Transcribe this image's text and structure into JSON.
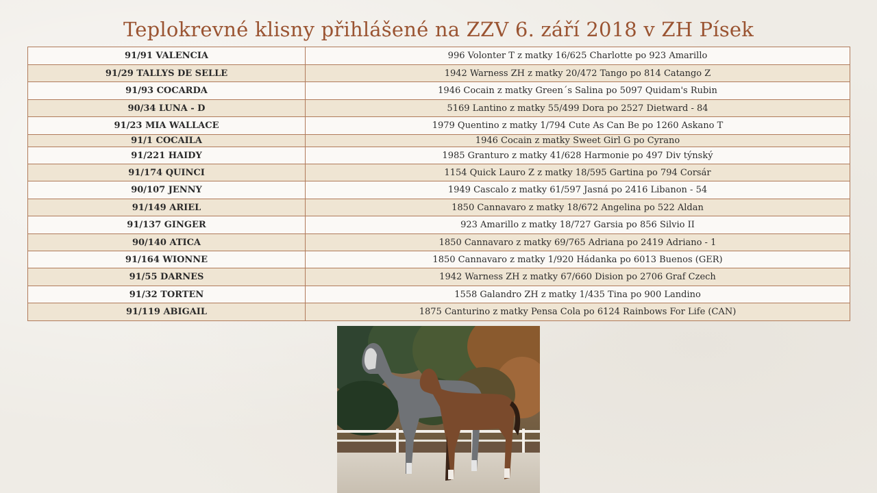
{
  "title": "Teplokrevné klisny přihlášené na ZZV 6. září 2018 v ZH Písek",
  "rows": [
    {
      "name": "91/91 VALENCIA",
      "pedigree": "996 Volonter T z matky 16/625 Charlotte po 923 Amarillo"
    },
    {
      "name": "91/29 TALLYS DE SELLE",
      "pedigree": "1942 Warness ZH z matky 20/472 Tango po 814 Catango Z"
    },
    {
      "name": "91/93 COCARDA",
      "pedigree": "1946 Cocain z matky Green´s Salina po 5097 Quidam's Rubin"
    },
    {
      "name": "90/34 LUNA - D",
      "pedigree": "5169 Lantino z matky 55/499 Dora po 2527 Dietward - 84"
    },
    {
      "name": "91/23 MIA WALLACE",
      "pedigree": "1979 Quentino z matky 1/794 Cute As Can Be po 1260 Askano T"
    },
    {
      "name": "91/1 COCAILA",
      "pedigree": "1946 Cocain z matky Sweet Girl G po Cyrano"
    },
    {
      "name": "91/221 HAIDY",
      "pedigree": "1985 Granturo z matky 41/628 Harmonie po 497 Div týnský"
    },
    {
      "name": "91/174 QUINCI",
      "pedigree": "1154 Quick Lauro Z z matky 18/595 Gartina po 794 Corsár"
    },
    {
      "name": "90/107 JENNY",
      "pedigree": "1949 Cascalo z matky 61/597 Jasná po 2416 Libanon - 54"
    },
    {
      "name": "91/149 ARIEL",
      "pedigree": "1850 Cannavaro z matky 18/672 Angelina po 522 Aldan"
    },
    {
      "name": "91/137 GINGER",
      "pedigree": "923 Amarillo z matky 18/727 Garsia po 856 Silvio II"
    },
    {
      "name": "90/140 ATICA",
      "pedigree": "1850 Cannavaro z matky 69/765 Adriana po 2419 Adriano - 1"
    },
    {
      "name": "91/164 WIONNE",
      "pedigree": "1850 Cannavaro z matky 1/920 Hádanka po 6013 Buenos (GER)"
    },
    {
      "name": "91/55 DARNES",
      "pedigree": "1942 Warness ZH z matky 67/660 Dision po 2706 Graf Czech"
    },
    {
      "name": "91/32 TORTEN",
      "pedigree": "1558 Galandro ZH z matky 1/435 Tina po 900 Landino"
    },
    {
      "name": "91/119 ABIGAIL",
      "pedigree": "1875 Canturino z matky Pensa Cola po 6124 Rainbows For Life (CAN)"
    }
  ],
  "colors": {
    "title": "#9a5432",
    "border": "#b07a5a",
    "row_light": "#fbf9f6",
    "row_dark": "#efe5d3"
  }
}
